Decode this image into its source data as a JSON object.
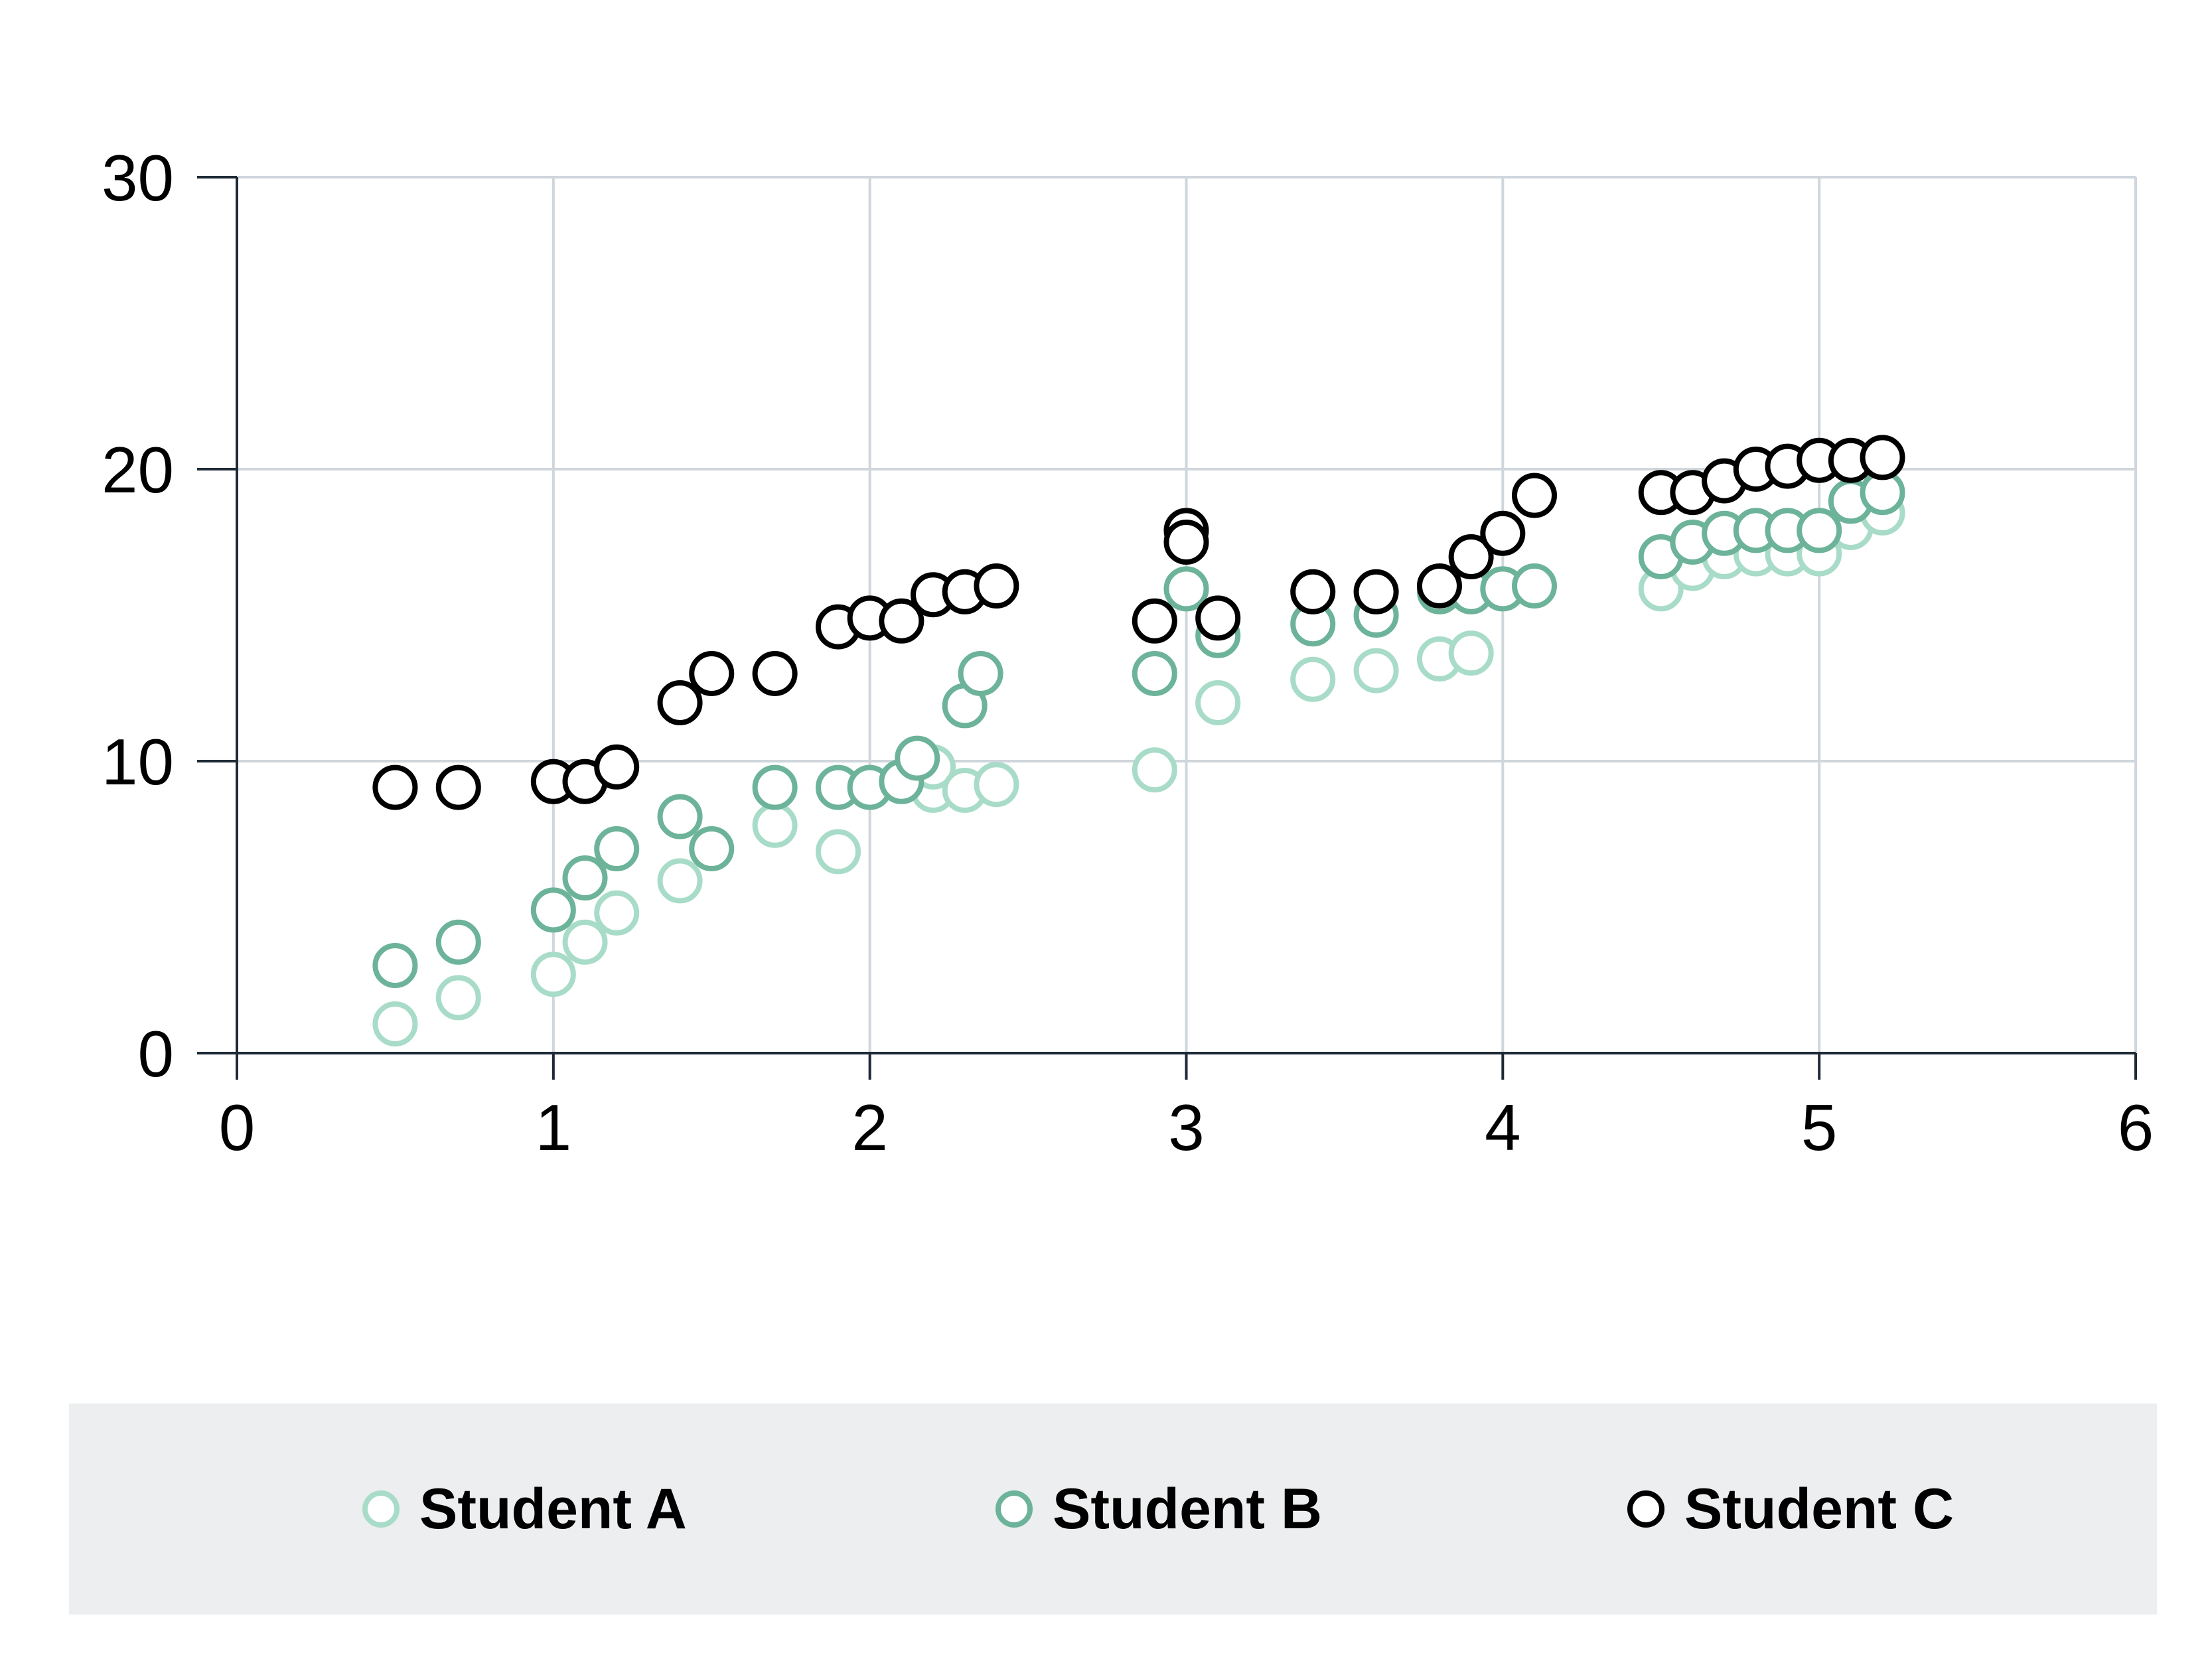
{
  "chart_data": {
    "type": "scatter",
    "title": "",
    "xlabel": "",
    "ylabel": "",
    "xlim": [
      0,
      6
    ],
    "ylim": [
      0,
      30
    ],
    "x_ticks": [
      "0",
      "1",
      "2",
      "3",
      "4",
      "5",
      "6"
    ],
    "y_ticks": [
      "0",
      "10",
      "20",
      "30"
    ],
    "grid": true,
    "legend_position": "bottom",
    "series": [
      {
        "name": "Student A",
        "color": "#a8dcc8",
        "points": [
          [
            0.5,
            1.0
          ],
          [
            0.7,
            1.9
          ],
          [
            1.0,
            2.7
          ],
          [
            1.1,
            3.8
          ],
          [
            1.2,
            4.8
          ],
          [
            1.4,
            5.9
          ],
          [
            1.7,
            7.8
          ],
          [
            1.9,
            6.9
          ],
          [
            2.2,
            9.0
          ],
          [
            2.2,
            9.8
          ],
          [
            2.3,
            9.0
          ],
          [
            2.4,
            9.2
          ],
          [
            2.9,
            9.7
          ],
          [
            3.1,
            12.0
          ],
          [
            3.4,
            12.8
          ],
          [
            3.6,
            13.1
          ],
          [
            3.8,
            13.5
          ],
          [
            3.9,
            13.7
          ],
          [
            4.5,
            15.9
          ],
          [
            4.6,
            16.6
          ],
          [
            4.7,
            17.0
          ],
          [
            4.8,
            17.1
          ],
          [
            4.9,
            17.1
          ],
          [
            5.0,
            17.1
          ],
          [
            5.1,
            18.0
          ],
          [
            5.2,
            18.5
          ]
        ]
      },
      {
        "name": "Student B",
        "color": "#6cb39a",
        "points": [
          [
            0.5,
            3.0
          ],
          [
            0.7,
            3.8
          ],
          [
            1.0,
            4.9
          ],
          [
            1.1,
            6.0
          ],
          [
            1.2,
            7.0
          ],
          [
            1.4,
            8.1
          ],
          [
            1.5,
            7.0
          ],
          [
            1.7,
            9.1
          ],
          [
            1.9,
            9.1
          ],
          [
            2.0,
            9.1
          ],
          [
            2.1,
            9.3
          ],
          [
            2.15,
            10.1
          ],
          [
            2.3,
            11.9
          ],
          [
            2.35,
            13.0
          ],
          [
            2.9,
            13.0
          ],
          [
            3.0,
            15.9
          ],
          [
            3.1,
            14.3
          ],
          [
            3.4,
            14.7
          ],
          [
            3.6,
            15.0
          ],
          [
            3.8,
            15.8
          ],
          [
            3.9,
            15.8
          ],
          [
            4.0,
            15.9
          ],
          [
            4.1,
            16.0
          ],
          [
            4.5,
            17.0
          ],
          [
            4.6,
            17.5
          ],
          [
            4.7,
            17.8
          ],
          [
            4.8,
            17.9
          ],
          [
            4.9,
            17.9
          ],
          [
            5.0,
            17.9
          ],
          [
            5.1,
            18.9
          ],
          [
            5.2,
            19.2
          ]
        ]
      },
      {
        "name": "Student C",
        "color": "#000000",
        "points": [
          [
            0.5,
            9.1
          ],
          [
            0.7,
            9.1
          ],
          [
            1.0,
            9.3
          ],
          [
            1.1,
            9.3
          ],
          [
            1.2,
            9.8
          ],
          [
            1.4,
            12.0
          ],
          [
            1.5,
            13.0
          ],
          [
            1.7,
            13.0
          ],
          [
            1.9,
            14.6
          ],
          [
            2.0,
            14.9
          ],
          [
            2.1,
            14.8
          ],
          [
            2.2,
            15.7
          ],
          [
            2.3,
            15.8
          ],
          [
            2.4,
            16.0
          ],
          [
            2.9,
            14.8
          ],
          [
            3.0,
            17.9
          ],
          [
            3.0,
            17.5
          ],
          [
            3.1,
            14.9
          ],
          [
            3.4,
            15.8
          ],
          [
            3.6,
            15.8
          ],
          [
            3.8,
            16.0
          ],
          [
            3.9,
            17.0
          ],
          [
            4.0,
            17.8
          ],
          [
            4.1,
            19.1
          ],
          [
            4.5,
            19.2
          ],
          [
            4.6,
            19.2
          ],
          [
            4.7,
            19.6
          ],
          [
            4.8,
            20.0
          ],
          [
            4.9,
            20.1
          ],
          [
            5.0,
            20.3
          ],
          [
            5.1,
            20.3
          ],
          [
            5.2,
            20.4
          ]
        ]
      }
    ]
  }
}
